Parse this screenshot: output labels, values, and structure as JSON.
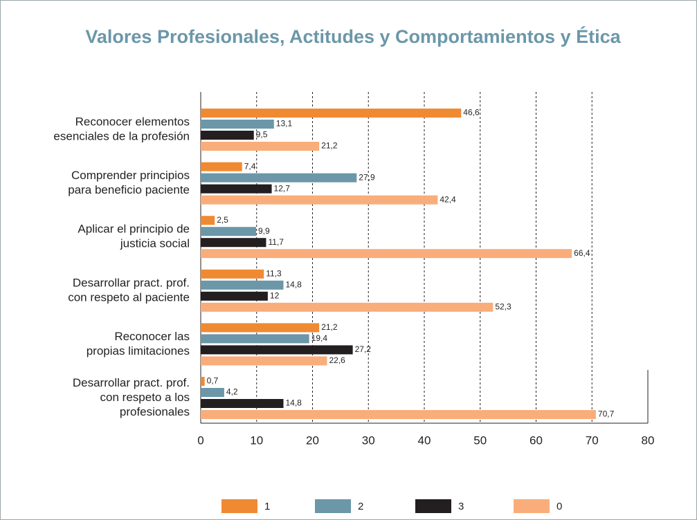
{
  "chart_data": {
    "type": "bar",
    "orientation": "horizontal",
    "title": "Valores Profesionales, Actitudes y Comportamientos y Ética",
    "categories": [
      [
        "Reconocer elementos",
        "esenciales de la profesión"
      ],
      [
        "Comprender principios",
        "para beneficio paciente"
      ],
      [
        "Aplicar el principio de",
        "justicia social"
      ],
      [
        "Desarrollar pract. prof.",
        "con respeto al paciente"
      ],
      [
        "Reconocer las",
        "propias limitaciones"
      ],
      [
        "Desarrollar pract. prof.",
        "con respeto a los",
        "profesionales"
      ]
    ],
    "series": [
      {
        "name": "1",
        "color": "#f08a32",
        "values": [
          46.6,
          7.4,
          2.5,
          11.3,
          21.2,
          0.7
        ],
        "value_labels": [
          "46,6",
          "7,4",
          "2,5",
          "11,3",
          "21,2",
          "0,7"
        ]
      },
      {
        "name": "2",
        "color": "#6b97a8",
        "values": [
          13.1,
          27.9,
          9.9,
          14.8,
          19.4,
          4.2
        ],
        "value_labels": [
          "13,1",
          "27,9",
          "9,9",
          "14,8",
          "19,4",
          "4,2"
        ]
      },
      {
        "name": "3",
        "color": "#231f20",
        "values": [
          9.5,
          12.7,
          11.7,
          12,
          27.2,
          14.8
        ],
        "value_labels": [
          "9,5",
          "12,7",
          "11,7",
          "12",
          "27,2",
          "14,8"
        ]
      },
      {
        "name": "0",
        "color": "#f9ad7a",
        "values": [
          21.2,
          42.4,
          66.4,
          52.3,
          22.6,
          70.7
        ],
        "value_labels": [
          "21,2",
          "42,4",
          "66,4",
          "52,3",
          "22,6",
          "70,7"
        ]
      }
    ],
    "xlim": [
      0,
      80
    ],
    "xticks": [
      0,
      10,
      20,
      30,
      40,
      50,
      60,
      70,
      80
    ],
    "grid": true
  }
}
